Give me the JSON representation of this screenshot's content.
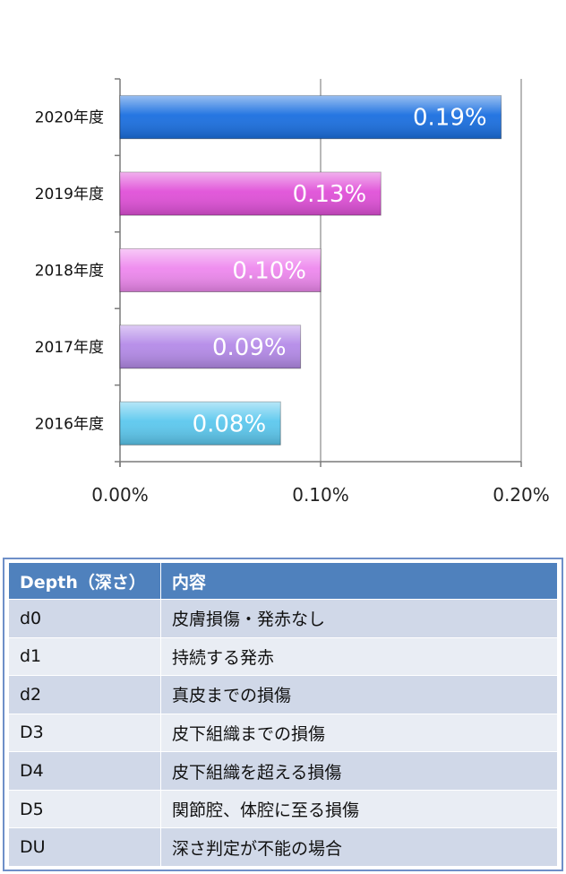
{
  "chart_data": {
    "type": "bar",
    "orientation": "horizontal",
    "categories": [
      "2020年度",
      "2019年度",
      "2018年度",
      "2017年度",
      "2016年度"
    ],
    "values": [
      0.19,
      0.13,
      0.1,
      0.09,
      0.08
    ],
    "value_labels": [
      "0.19%",
      "0.13%",
      "0.10%",
      "0.09%",
      "0.08%"
    ],
    "bar_colors": [
      "#1a6fe0",
      "#e050d8",
      "#ee88ee",
      "#b48ae8",
      "#5cc8ee"
    ],
    "xlim": [
      0,
      0.2
    ],
    "x_ticks": [
      0,
      0.1,
      0.2
    ],
    "x_tick_labels": [
      "0.00%",
      "0.10%",
      "0.20%"
    ],
    "grid": true,
    "title": "",
    "xlabel": "",
    "ylabel": ""
  },
  "table": {
    "headers": [
      "Depth（深さ）",
      "内容"
    ],
    "rows": [
      [
        "d0",
        "皮膚損傷・発赤なし"
      ],
      [
        "d1",
        "持続する発赤"
      ],
      [
        "d2",
        "真皮までの損傷"
      ],
      [
        "D3",
        "皮下組織までの損傷"
      ],
      [
        "D4",
        "皮下組織を超える損傷"
      ],
      [
        "D5",
        "関節腔、体腔に至る損傷"
      ],
      [
        "DU",
        "深さ判定が不能の場合"
      ]
    ]
  }
}
